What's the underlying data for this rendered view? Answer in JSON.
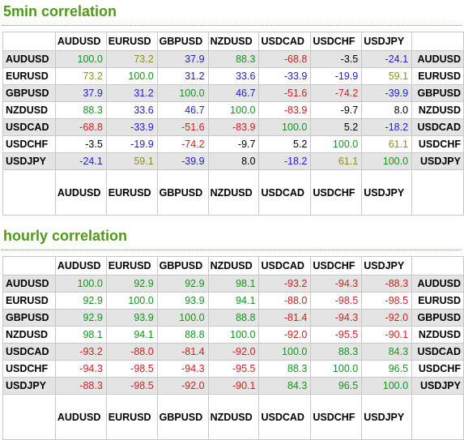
{
  "colors": {
    "title": "#4f9a16",
    "green": "#11961a",
    "olive": "#8e8e1a",
    "blue": "#1e1ed2",
    "red": "#d21e1e",
    "black": "#000000",
    "shade": "#e4e4e4"
  },
  "currencies": [
    "AUDUSD",
    "EURUSD",
    "GBPUSD",
    "NZDUSD",
    "USDCAD",
    "USDCHF",
    "USDJPY"
  ],
  "sections": [
    {
      "title": "5min correlation",
      "rows": [
        {
          "label": "AUDUSD",
          "cells": [
            {
              "v": "100.0",
              "c": "green"
            },
            {
              "v": "73.2",
              "c": "olive"
            },
            {
              "v": "37.9",
              "c": "blue"
            },
            {
              "v": "88.3",
              "c": "green"
            },
            {
              "v": "-68.8",
              "c": "red"
            },
            {
              "v": "-3.5",
              "c": "black"
            },
            {
              "v": "-24.1",
              "c": "blue"
            }
          ]
        },
        {
          "label": "EURUSD",
          "cells": [
            {
              "v": "73.2",
              "c": "olive"
            },
            {
              "v": "100.0",
              "c": "green"
            },
            {
              "v": "31.2",
              "c": "blue"
            },
            {
              "v": "33.6",
              "c": "blue"
            },
            {
              "v": "-33.9",
              "c": "blue"
            },
            {
              "v": "-19.9",
              "c": "blue"
            },
            {
              "v": "59.1",
              "c": "olive"
            }
          ]
        },
        {
          "label": "GBPUSD",
          "cells": [
            {
              "v": "37.9",
              "c": "blue"
            },
            {
              "v": "31.2",
              "c": "blue"
            },
            {
              "v": "100.0",
              "c": "green"
            },
            {
              "v": "46.7",
              "c": "blue"
            },
            {
              "v": "-51.6",
              "c": "red"
            },
            {
              "v": "-74.2",
              "c": "red"
            },
            {
              "v": "-39.9",
              "c": "blue"
            }
          ]
        },
        {
          "label": "NZDUSD",
          "cells": [
            {
              "v": "88.3",
              "c": "green"
            },
            {
              "v": "33.6",
              "c": "blue"
            },
            {
              "v": "46.7",
              "c": "blue"
            },
            {
              "v": "100.0",
              "c": "green"
            },
            {
              "v": "-83.9",
              "c": "red"
            },
            {
              "v": "-9.7",
              "c": "black"
            },
            {
              "v": "8.0",
              "c": "black"
            }
          ]
        },
        {
          "label": "USDCAD",
          "cells": [
            {
              "v": "-68.8",
              "c": "red"
            },
            {
              "v": "-33.9",
              "c": "blue"
            },
            {
              "v": "-51.6",
              "c": "red"
            },
            {
              "v": "-83.9",
              "c": "red"
            },
            {
              "v": "100.0",
              "c": "green"
            },
            {
              "v": "5.2",
              "c": "black"
            },
            {
              "v": "-18.2",
              "c": "blue"
            }
          ]
        },
        {
          "label": "USDCHF",
          "cells": [
            {
              "v": "-3.5",
              "c": "black"
            },
            {
              "v": "-19.9",
              "c": "blue"
            },
            {
              "v": "-74.2",
              "c": "red"
            },
            {
              "v": "-9.7",
              "c": "black"
            },
            {
              "v": "5.2",
              "c": "black"
            },
            {
              "v": "100.0",
              "c": "green"
            },
            {
              "v": "61.1",
              "c": "olive"
            }
          ]
        },
        {
          "label": "USDJPY",
          "cells": [
            {
              "v": "-24.1",
              "c": "blue"
            },
            {
              "v": "59.1",
              "c": "olive"
            },
            {
              "v": "-39.9",
              "c": "blue"
            },
            {
              "v": "8.0",
              "c": "black"
            },
            {
              "v": "-18.2",
              "c": "blue"
            },
            {
              "v": "61.1",
              "c": "olive"
            },
            {
              "v": "100.0",
              "c": "green"
            }
          ]
        }
      ]
    },
    {
      "title": "hourly correlation",
      "rows": [
        {
          "label": "AUDUSD",
          "cells": [
            {
              "v": "100.0",
              "c": "green"
            },
            {
              "v": "92.9",
              "c": "green"
            },
            {
              "v": "92.9",
              "c": "green"
            },
            {
              "v": "98.1",
              "c": "green"
            },
            {
              "v": "-93.2",
              "c": "red"
            },
            {
              "v": "-94.3",
              "c": "red"
            },
            {
              "v": "-88.3",
              "c": "red"
            }
          ]
        },
        {
          "label": "EURUSD",
          "cells": [
            {
              "v": "92.9",
              "c": "green"
            },
            {
              "v": "100.0",
              "c": "green"
            },
            {
              "v": "93.9",
              "c": "green"
            },
            {
              "v": "94.1",
              "c": "green"
            },
            {
              "v": "-88.0",
              "c": "red"
            },
            {
              "v": "-98.5",
              "c": "red"
            },
            {
              "v": "-98.5",
              "c": "red"
            }
          ]
        },
        {
          "label": "GBPUSD",
          "cells": [
            {
              "v": "92.9",
              "c": "green"
            },
            {
              "v": "93.9",
              "c": "green"
            },
            {
              "v": "100.0",
              "c": "green"
            },
            {
              "v": "88.8",
              "c": "green"
            },
            {
              "v": "-81.4",
              "c": "red"
            },
            {
              "v": "-94.3",
              "c": "red"
            },
            {
              "v": "-92.0",
              "c": "red"
            }
          ]
        },
        {
          "label": "NZDUSD",
          "cells": [
            {
              "v": "98.1",
              "c": "green"
            },
            {
              "v": "94.1",
              "c": "green"
            },
            {
              "v": "88.8",
              "c": "green"
            },
            {
              "v": "100.0",
              "c": "green"
            },
            {
              "v": "-92.0",
              "c": "red"
            },
            {
              "v": "-95.5",
              "c": "red"
            },
            {
              "v": "-90.1",
              "c": "red"
            }
          ]
        },
        {
          "label": "USDCAD",
          "cells": [
            {
              "v": "-93.2",
              "c": "red"
            },
            {
              "v": "-88.0",
              "c": "red"
            },
            {
              "v": "-81.4",
              "c": "red"
            },
            {
              "v": "-92.0",
              "c": "red"
            },
            {
              "v": "100.0",
              "c": "green"
            },
            {
              "v": "88.3",
              "c": "green"
            },
            {
              "v": "84.3",
              "c": "green"
            }
          ]
        },
        {
          "label": "USDCHF",
          "cells": [
            {
              "v": "-94.3",
              "c": "red"
            },
            {
              "v": "-98.5",
              "c": "red"
            },
            {
              "v": "-94.3",
              "c": "red"
            },
            {
              "v": "-95.5",
              "c": "red"
            },
            {
              "v": "88.3",
              "c": "green"
            },
            {
              "v": "100.0",
              "c": "green"
            },
            {
              "v": "96.5",
              "c": "green"
            }
          ]
        },
        {
          "label": "USDJPY",
          "cells": [
            {
              "v": "-88.3",
              "c": "red"
            },
            {
              "v": "-98.5",
              "c": "red"
            },
            {
              "v": "-92.0",
              "c": "red"
            },
            {
              "v": "-90.1",
              "c": "red"
            },
            {
              "v": "84.3",
              "c": "green"
            },
            {
              "v": "96.5",
              "c": "green"
            },
            {
              "v": "100.0",
              "c": "green"
            }
          ]
        }
      ]
    }
  ]
}
